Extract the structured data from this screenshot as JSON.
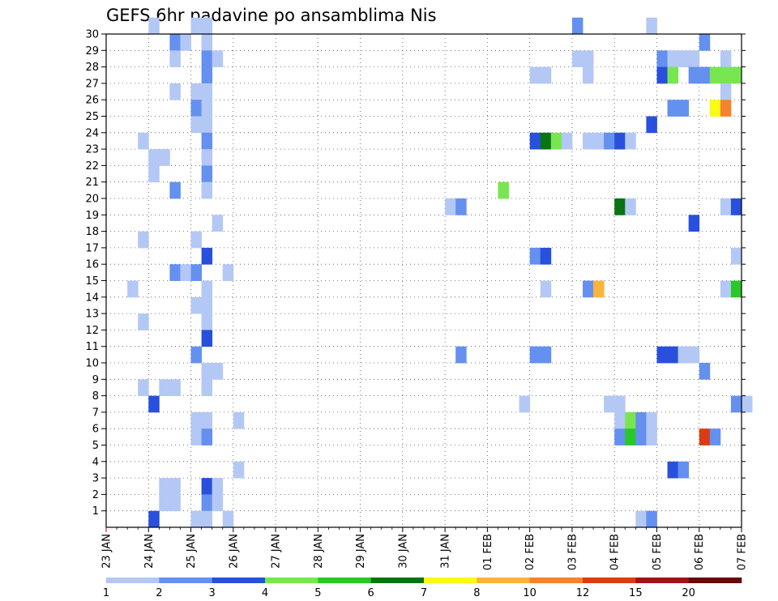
{
  "chart_data": {
    "type": "heatmap",
    "title": "GEFS 6hr padavine po ansamblima Nis",
    "xlabel": "",
    "ylabel": "",
    "x_ticks": [
      "23 JAN",
      "24 JAN",
      "25 JAN",
      "26 JAN",
      "27 JAN",
      "28 JAN",
      "29 JAN",
      "30 JAN",
      "31 JAN",
      "01 FEB",
      "02 FEB",
      "03 FEB",
      "04 FEB",
      "05 FEB",
      "06 FEB",
      "07 FEB"
    ],
    "x_steps_per_day": 4,
    "y_ticks": [
      "1",
      "2",
      "3",
      "4",
      "5",
      "6",
      "7",
      "8",
      "9",
      "10",
      "11",
      "12",
      "13",
      "14",
      "15",
      "16",
      "17",
      "18",
      "19",
      "20",
      "21",
      "22",
      "23",
      "24",
      "25",
      "26",
      "27",
      "28",
      "29",
      "30"
    ],
    "ylim": [
      0,
      30
    ],
    "grid": true,
    "colorbar": {
      "labels": [
        "1",
        "2",
        "3",
        "4",
        "5",
        "6",
        "7",
        "8",
        "10",
        "12",
        "15",
        "20"
      ],
      "colors": [
        "#b4c8f5",
        "#6490f0",
        "#2850dc",
        "#78e650",
        "#28c828",
        "#0a7314",
        "#fafa14",
        "#fab43c",
        "#f5822d",
        "#dc3c14",
        "#a01414",
        "#640a0a"
      ]
    },
    "cells": [
      {
        "t": 4,
        "m": 30,
        "c": 0
      },
      {
        "t": 8,
        "m": 30,
        "c": 0
      },
      {
        "t": 9,
        "m": 30,
        "c": 0
      },
      {
        "t": 44,
        "m": 30,
        "c": 1
      },
      {
        "t": 51,
        "m": 30,
        "c": 0
      },
      {
        "t": 6,
        "m": 29,
        "c": 1
      },
      {
        "t": 7,
        "m": 29,
        "c": 0
      },
      {
        "t": 9,
        "m": 29,
        "c": 0
      },
      {
        "t": 56,
        "m": 29,
        "c": 1
      },
      {
        "t": 6,
        "m": 28,
        "c": 0
      },
      {
        "t": 9,
        "m": 28,
        "c": 1
      },
      {
        "t": 10,
        "m": 28,
        "c": 0
      },
      {
        "t": 44,
        "m": 28,
        "c": 0
      },
      {
        "t": 45,
        "m": 28,
        "c": 0
      },
      {
        "t": 52,
        "m": 28,
        "c": 1
      },
      {
        "t": 53,
        "m": 28,
        "c": 0
      },
      {
        "t": 54,
        "m": 28,
        "c": 0
      },
      {
        "t": 55,
        "m": 28,
        "c": 0
      },
      {
        "t": 58,
        "m": 28,
        "c": 0
      },
      {
        "t": 9,
        "m": 27,
        "c": 1
      },
      {
        "t": 40,
        "m": 27,
        "c": 0
      },
      {
        "t": 41,
        "m": 27,
        "c": 0
      },
      {
        "t": 45,
        "m": 27,
        "c": 0
      },
      {
        "t": 52,
        "m": 27,
        "c": 2
      },
      {
        "t": 53,
        "m": 27,
        "c": 3
      },
      {
        "t": 55,
        "m": 27,
        "c": 1
      },
      {
        "t": 56,
        "m": 27,
        "c": 1
      },
      {
        "t": 57,
        "m": 27,
        "c": 3
      },
      {
        "t": 58,
        "m": 27,
        "c": 3
      },
      {
        "t": 59,
        "m": 27,
        "c": 3
      },
      {
        "t": 6,
        "m": 26,
        "c": 0
      },
      {
        "t": 8,
        "m": 26,
        "c": 0
      },
      {
        "t": 9,
        "m": 26,
        "c": 0
      },
      {
        "t": 58,
        "m": 26,
        "c": 0
      },
      {
        "t": 8,
        "m": 25,
        "c": 1
      },
      {
        "t": 9,
        "m": 25,
        "c": 0
      },
      {
        "t": 53,
        "m": 25,
        "c": 1
      },
      {
        "t": 54,
        "m": 25,
        "c": 1
      },
      {
        "t": 57,
        "m": 25,
        "c": 6
      },
      {
        "t": 58,
        "m": 25,
        "c": 8
      },
      {
        "t": 8,
        "m": 24,
        "c": 0
      },
      {
        "t": 9,
        "m": 24,
        "c": 0
      },
      {
        "t": 51,
        "m": 24,
        "c": 2
      },
      {
        "t": 3,
        "m": 23,
        "c": 0
      },
      {
        "t": 9,
        "m": 23,
        "c": 1
      },
      {
        "t": 40,
        "m": 23,
        "c": 2
      },
      {
        "t": 41,
        "m": 23,
        "c": 5
      },
      {
        "t": 42,
        "m": 23,
        "c": 3
      },
      {
        "t": 43,
        "m": 23,
        "c": 0
      },
      {
        "t": 45,
        "m": 23,
        "c": 0
      },
      {
        "t": 46,
        "m": 23,
        "c": 0
      },
      {
        "t": 47,
        "m": 23,
        "c": 1
      },
      {
        "t": 48,
        "m": 23,
        "c": 2
      },
      {
        "t": 49,
        "m": 23,
        "c": 0
      },
      {
        "t": 4,
        "m": 22,
        "c": 0
      },
      {
        "t": 5,
        "m": 22,
        "c": 0
      },
      {
        "t": 9,
        "m": 22,
        "c": 0
      },
      {
        "t": 4,
        "m": 21,
        "c": 0
      },
      {
        "t": 9,
        "m": 21,
        "c": 1
      },
      {
        "t": 6,
        "m": 20,
        "c": 1
      },
      {
        "t": 9,
        "m": 20,
        "c": 0
      },
      {
        "t": 37,
        "m": 20,
        "c": 3
      },
      {
        "t": 32,
        "m": 19,
        "c": 0
      },
      {
        "t": 33,
        "m": 19,
        "c": 1
      },
      {
        "t": 48,
        "m": 19,
        "c": 5
      },
      {
        "t": 49,
        "m": 19,
        "c": 0
      },
      {
        "t": 58,
        "m": 19,
        "c": 0
      },
      {
        "t": 59,
        "m": 19,
        "c": 2
      },
      {
        "t": 10,
        "m": 18,
        "c": 0
      },
      {
        "t": 55,
        "m": 18,
        "c": 2
      },
      {
        "t": 3,
        "m": 17,
        "c": 0
      },
      {
        "t": 8,
        "m": 17,
        "c": 0
      },
      {
        "t": 9,
        "m": 16,
        "c": 2
      },
      {
        "t": 40,
        "m": 16,
        "c": 1
      },
      {
        "t": 41,
        "m": 16,
        "c": 2
      },
      {
        "t": 59,
        "m": 16,
        "c": 0
      },
      {
        "t": 6,
        "m": 15,
        "c": 1
      },
      {
        "t": 7,
        "m": 15,
        "c": 0
      },
      {
        "t": 8,
        "m": 15,
        "c": 1
      },
      {
        "t": 11,
        "m": 15,
        "c": 0
      },
      {
        "t": 2,
        "m": 14,
        "c": 0
      },
      {
        "t": 9,
        "m": 14,
        "c": 0
      },
      {
        "t": 41,
        "m": 14,
        "c": 0
      },
      {
        "t": 45,
        "m": 14,
        "c": 1
      },
      {
        "t": 46,
        "m": 14,
        "c": 7
      },
      {
        "t": 58,
        "m": 14,
        "c": 0
      },
      {
        "t": 59,
        "m": 14,
        "c": 4
      },
      {
        "t": 8,
        "m": 13,
        "c": 0
      },
      {
        "t": 9,
        "m": 13,
        "c": 0
      },
      {
        "t": 3,
        "m": 12,
        "c": 0
      },
      {
        "t": 9,
        "m": 12,
        "c": 0
      },
      {
        "t": 9,
        "m": 11,
        "c": 2
      },
      {
        "t": 8,
        "m": 10,
        "c": 1
      },
      {
        "t": 33,
        "m": 10,
        "c": 1
      },
      {
        "t": 40,
        "m": 10,
        "c": 1
      },
      {
        "t": 41,
        "m": 10,
        "c": 1
      },
      {
        "t": 52,
        "m": 10,
        "c": 2
      },
      {
        "t": 53,
        "m": 10,
        "c": 2
      },
      {
        "t": 54,
        "m": 10,
        "c": 0
      },
      {
        "t": 55,
        "m": 10,
        "c": 0
      },
      {
        "t": 9,
        "m": 9,
        "c": 0
      },
      {
        "t": 10,
        "m": 9,
        "c": 0
      },
      {
        "t": 56,
        "m": 9,
        "c": 1
      },
      {
        "t": 3,
        "m": 8,
        "c": 0
      },
      {
        "t": 5,
        "m": 8,
        "c": 0
      },
      {
        "t": 6,
        "m": 8,
        "c": 0
      },
      {
        "t": 9,
        "m": 8,
        "c": 0
      },
      {
        "t": 4,
        "m": 7,
        "c": 2
      },
      {
        "t": 39,
        "m": 7,
        "c": 0
      },
      {
        "t": 47,
        "m": 7,
        "c": 0
      },
      {
        "t": 48,
        "m": 7,
        "c": 0
      },
      {
        "t": 59,
        "m": 7,
        "c": 1
      },
      {
        "t": 60,
        "m": 7,
        "c": 0
      },
      {
        "t": 8,
        "m": 6,
        "c": 0
      },
      {
        "t": 9,
        "m": 6,
        "c": 0
      },
      {
        "t": 12,
        "m": 6,
        "c": 0
      },
      {
        "t": 48,
        "m": 6,
        "c": 0
      },
      {
        "t": 49,
        "m": 6,
        "c": 3
      },
      {
        "t": 50,
        "m": 6,
        "c": 1
      },
      {
        "t": 51,
        "m": 6,
        "c": 0
      },
      {
        "t": 8,
        "m": 5,
        "c": 0
      },
      {
        "t": 9,
        "m": 5,
        "c": 1
      },
      {
        "t": 48,
        "m": 5,
        "c": 1
      },
      {
        "t": 49,
        "m": 5,
        "c": 4
      },
      {
        "t": 50,
        "m": 5,
        "c": 1
      },
      {
        "t": 51,
        "m": 5,
        "c": 0
      },
      {
        "t": 56,
        "m": 5,
        "c": 9
      },
      {
        "t": 57,
        "m": 5,
        "c": 1
      },
      {
        "t": 12,
        "m": 3,
        "c": 0
      },
      {
        "t": 53,
        "m": 3,
        "c": 2
      },
      {
        "t": 54,
        "m": 3,
        "c": 1
      },
      {
        "t": 5,
        "m": 2,
        "c": 0
      },
      {
        "t": 6,
        "m": 2,
        "c": 0
      },
      {
        "t": 9,
        "m": 2,
        "c": 2
      },
      {
        "t": 10,
        "m": 2,
        "c": 0
      },
      {
        "t": 5,
        "m": 1,
        "c": 0
      },
      {
        "t": 6,
        "m": 1,
        "c": 0
      },
      {
        "t": 9,
        "m": 1,
        "c": 1
      },
      {
        "t": 10,
        "m": 1,
        "c": 0
      },
      {
        "t": 4,
        "m": 0,
        "c": 2
      },
      {
        "t": 8,
        "m": 0,
        "c": 0
      },
      {
        "t": 9,
        "m": 0,
        "c": 0
      },
      {
        "t": 11,
        "m": 0,
        "c": 0
      },
      {
        "t": 50,
        "m": 0,
        "c": 0
      },
      {
        "t": 51,
        "m": 0,
        "c": 1
      }
    ]
  }
}
